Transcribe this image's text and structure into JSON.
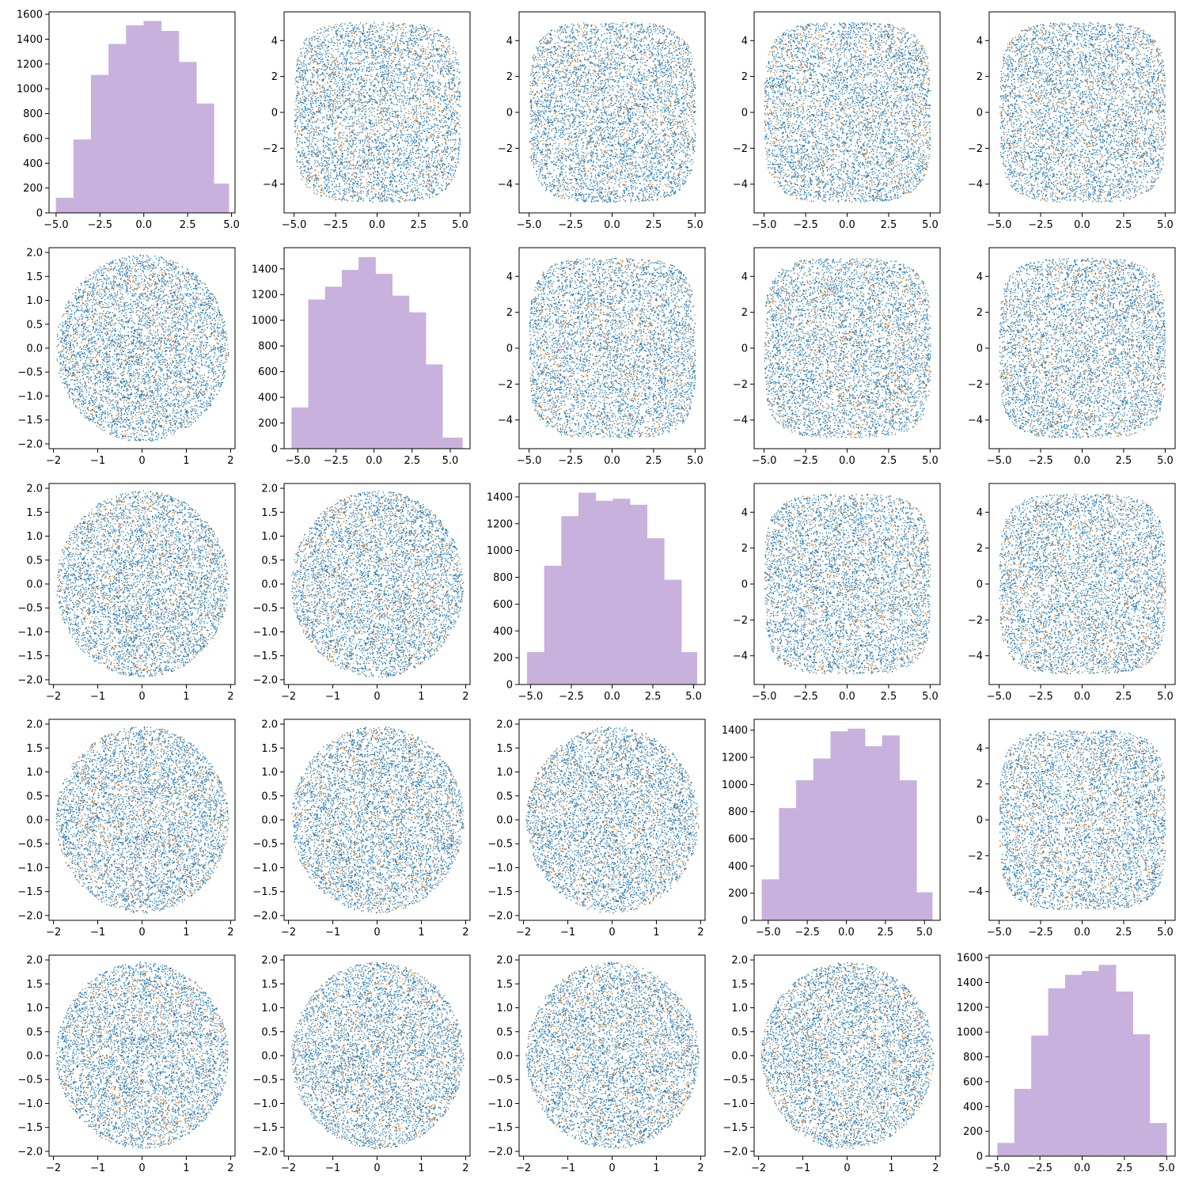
{
  "chart_data": {
    "type": "scatter",
    "description_of_layout": "",
    "n": 5,
    "colors": {
      "primary": "#1f77b4",
      "secondary": "#ff7f0e",
      "hist": "#c8b1dc"
    },
    "diag_hist": [
      {
        "bins": [
          -5.0,
          -4.0,
          -3.0,
          -2.0,
          -1.0,
          0.0,
          1.0,
          2.0,
          3.0,
          4.0,
          4.85
        ],
        "counts": [
          120,
          590,
          1110,
          1360,
          1510,
          1545,
          1465,
          1215,
          880,
          235
        ],
        "xlim": [
          -5.4,
          5.2
        ],
        "ylim": [
          0,
          1620
        ],
        "xticks": [
          -5.0,
          -2.5,
          0.0,
          2.5,
          5.0
        ],
        "yticks": [
          0,
          200,
          400,
          600,
          800,
          1000,
          1200,
          1400,
          1600
        ]
      },
      {
        "bins": [
          -5.4,
          -4.3,
          -3.2,
          -2.1,
          -1.0,
          0.1,
          1.2,
          2.3,
          3.4,
          4.5,
          5.8
        ],
        "counts": [
          320,
          1160,
          1260,
          1390,
          1490,
          1360,
          1190,
          1060,
          655,
          85
        ],
        "xlim": [
          -5.9,
          6.3
        ],
        "ylim": [
          0,
          1565
        ],
        "xticks": [
          -5.0,
          -2.5,
          0.0,
          2.5,
          5.0
        ],
        "yticks": [
          0,
          200,
          400,
          600,
          800,
          1000,
          1200,
          1400
        ]
      },
      {
        "bins": [
          -5.2,
          -4.15,
          -3.1,
          -2.05,
          -1.0,
          0.05,
          1.1,
          2.15,
          3.2,
          4.25,
          5.2
        ],
        "counts": [
          240,
          885,
          1255,
          1430,
          1370,
          1385,
          1340,
          1090,
          780,
          240
        ],
        "xlim": [
          -5.7,
          5.7
        ],
        "ylim": [
          0,
          1500
        ],
        "xticks": [
          -5.0,
          -2.5,
          0.0,
          2.5,
          5.0
        ],
        "yticks": [
          0,
          200,
          400,
          600,
          800,
          1000,
          1200,
          1400
        ]
      },
      {
        "bins": [
          -5.4,
          -4.3,
          -3.2,
          -2.1,
          -1.0,
          0.1,
          1.2,
          2.3,
          3.4,
          4.5,
          5.5
        ],
        "counts": [
          300,
          825,
          1030,
          1190,
          1390,
          1410,
          1280,
          1360,
          1030,
          205
        ],
        "xlim": [
          -5.9,
          6.0
        ],
        "ylim": [
          0,
          1480
        ],
        "xticks": [
          -5.0,
          -2.5,
          0.0,
          2.5,
          5.0
        ],
        "yticks": [
          0,
          200,
          400,
          600,
          800,
          1000,
          1200,
          1400
        ]
      },
      {
        "bins": [
          -5.0,
          -4.0,
          -3.0,
          -2.0,
          -1.0,
          0.0,
          1.0,
          2.0,
          3.0,
          4.0,
          5.0
        ],
        "counts": [
          105,
          540,
          970,
          1350,
          1460,
          1490,
          1540,
          1325,
          980,
          265
        ],
        "xlim": [
          -5.5,
          5.5
        ],
        "ylim": [
          0,
          1620
        ],
        "xticks": [
          -5.0,
          -2.5,
          0.0,
          2.5,
          5.0
        ],
        "yticks": [
          0,
          200,
          400,
          600,
          800,
          1000,
          1200,
          1400,
          1600
        ]
      }
    ],
    "scatter_lower": {
      "x_range": [
        -1.95,
        1.95
      ],
      "y_range": [
        -1.95,
        1.95
      ],
      "xlim": [
        -2.1,
        2.1
      ],
      "ylim": [
        -2.1,
        2.1
      ],
      "xticks": [
        -2,
        -1,
        0,
        1,
        2
      ],
      "yticks": [
        -2.0,
        -1.5,
        -1.0,
        -0.5,
        0.0,
        0.5,
        1.0,
        1.5,
        2.0
      ],
      "shape": "disc"
    },
    "scatter_upper": {
      "x_range": [
        -5.0,
        5.0
      ],
      "y_range": [
        -5.0,
        5.0
      ],
      "xlim": [
        -5.6,
        5.6
      ],
      "ylim": [
        -5.6,
        5.6
      ],
      "xticks": [
        -5.0,
        -2.5,
        0.0,
        2.5,
        5.0
      ],
      "yticks": [
        -4,
        -2,
        0,
        2,
        4
      ],
      "shape": "rounded-square"
    },
    "points_per_panel": 10000,
    "secondary_fraction": 0.13
  }
}
